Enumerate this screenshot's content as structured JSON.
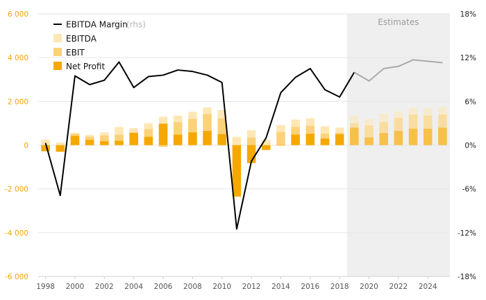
{
  "chart_data": {
    "type": "bar",
    "stacked": "overlay",
    "x": [
      1998,
      1999,
      2000,
      2001,
      2002,
      2003,
      2004,
      2005,
      2006,
      2007,
      2008,
      2009,
      2010,
      2011,
      2012,
      2013,
      2014,
      2015,
      2016,
      2017,
      2018,
      2019,
      2020,
      2021,
      2022,
      2023,
      2024,
      2025
    ],
    "x_ticks": [
      "1998",
      "2000",
      "2002",
      "2004",
      "2006",
      "2008",
      "2010",
      "2012",
      "2014",
      "2016",
      "2018",
      "2020",
      "2022",
      "2024"
    ],
    "y_left": {
      "ylim": [
        -6000,
        6000
      ],
      "ticks": [
        "6 000",
        "4 000",
        "2 000",
        "0",
        "-2 000",
        "-4 000",
        "-6 000"
      ],
      "tick_values": [
        6000,
        4000,
        2000,
        0,
        -2000,
        -4000,
        -6000
      ]
    },
    "y_right": {
      "ylim": [
        -18,
        18
      ],
      "unit": "%",
      "ticks": [
        "18%",
        "12%",
        "6%",
        "0%",
        "-6%",
        "-12%",
        "-18%"
      ],
      "tick_values": [
        18,
        12,
        6,
        0,
        -6,
        -12,
        -18
      ]
    },
    "grid": true,
    "legend_position": "top-left",
    "estimates_from": 2019,
    "estimates_label": "Estimates",
    "series": [
      {
        "name": "EBITDA",
        "kind": "bar",
        "color": "#fde7b5",
        "values": [
          250,
          120,
          560,
          470,
          580,
          830,
          780,
          1000,
          1300,
          1350,
          1520,
          1720,
          1600,
          380,
          680,
          250,
          920,
          1170,
          1230,
          860,
          800,
          1360,
          1200,
          1450,
          1550,
          1700,
          1700,
          1750
        ]
      },
      {
        "name": "EBIT",
        "kind": "bar",
        "color": "#fbd27a",
        "values": [
          -100,
          -150,
          520,
          380,
          440,
          480,
          580,
          730,
          -80,
          1050,
          1200,
          1420,
          1220,
          -50,
          350,
          -50,
          600,
          830,
          880,
          520,
          550,
          1000,
          900,
          1050,
          1250,
          1400,
          1350,
          1400
        ]
      },
      {
        "name": "Net Profit",
        "kind": "bar",
        "color": "#f5a800",
        "values": [
          -280,
          -300,
          420,
          240,
          180,
          200,
          560,
          380,
          980,
          480,
          580,
          650,
          500,
          -2350,
          -820,
          -220,
          -20,
          480,
          520,
          300,
          500,
          800,
          350,
          550,
          650,
          750,
          750,
          800
        ]
      },
      {
        "name": "EBITDA Margin",
        "note": "(rhs)",
        "kind": "line",
        "axis": "right",
        "color": "#000000",
        "estimate_color": "#aaaaaa",
        "values": [
          0.3,
          -6.9,
          9.5,
          8.3,
          8.9,
          11.4,
          7.9,
          9.4,
          9.6,
          10.3,
          10.1,
          9.6,
          8.6,
          -11.5,
          -2.2,
          1.0,
          7.2,
          9.3,
          10.5,
          7.6,
          6.6,
          10.0,
          8.8,
          10.5,
          10.8,
          11.7,
          11.5,
          11.3
        ]
      }
    ]
  }
}
